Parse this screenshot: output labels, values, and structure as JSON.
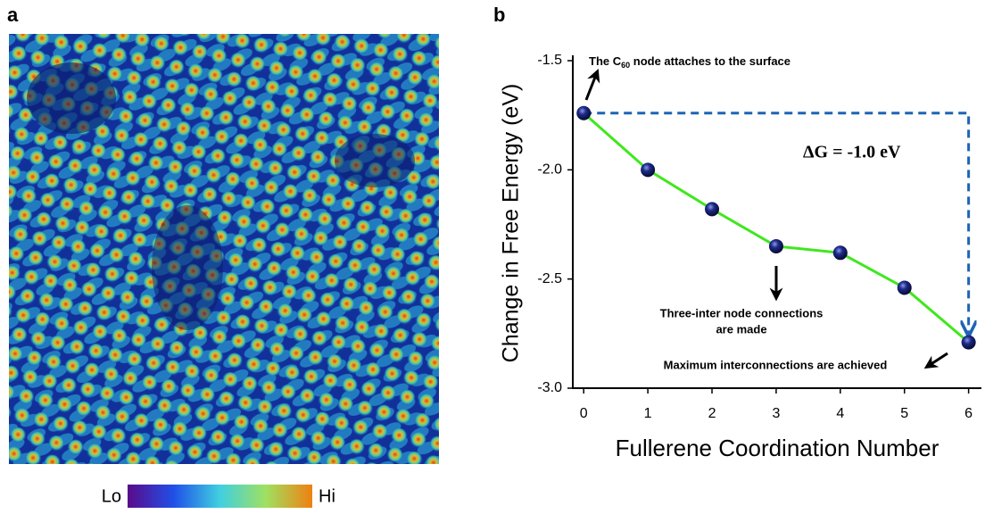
{
  "panel_a": {
    "label": "a",
    "colorbar": {
      "low": "Lo",
      "high": "Hi"
    }
  },
  "chart_data": {
    "type": "line",
    "panel_label": "b",
    "x_label": "Fullerene Coordination Number",
    "y_label": "Change in Free Energy (eV)",
    "x": [
      0,
      1,
      2,
      3,
      4,
      5,
      6
    ],
    "series": [
      {
        "color": "#3ee81c",
        "values": [
          -1.74,
          -2.0,
          -2.18,
          -2.35,
          -2.38,
          -2.54,
          -2.79
        ]
      }
    ],
    "xlim": [
      -0.17,
      6.2
    ],
    "ylim": [
      -3.0,
      -1.5
    ],
    "xticks": [
      0,
      1,
      2,
      3,
      4,
      5,
      6
    ],
    "yticks": [
      {
        "value": -1.5,
        "label": "-1.5"
      },
      {
        "value": -2.0,
        "label": "-2.0"
      },
      {
        "value": -2.5,
        "label": "-2.5"
      },
      {
        "value": -3.0,
        "label": "-3.0"
      }
    ],
    "annotations": {
      "attach": [
        "The C",
        "60",
        " node attaches to the surface"
      ],
      "delta_g": "ΔG = -1.0 eV",
      "three_line1": "Three-inter node connections",
      "three_line2": "are made",
      "maximum": "Maximum interconnections are achieved"
    }
  }
}
